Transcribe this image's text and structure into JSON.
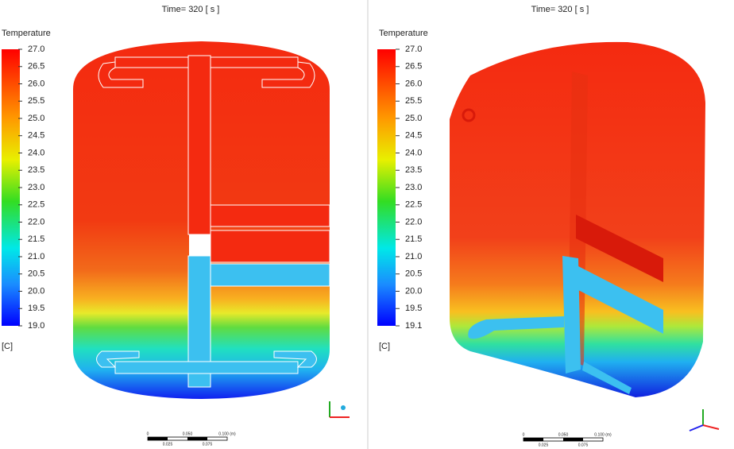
{
  "panels": [
    {
      "title": "Time= 320 [ s ]",
      "legend": {
        "title": "Temperature",
        "labels": [
          "27.0",
          "26.5",
          "26.0",
          "25.5",
          "25.0",
          "24.5",
          "24.0",
          "23.5",
          "23.0",
          "22.5",
          "22.0",
          "21.5",
          "21.0",
          "20.5",
          "20.0",
          "19.5",
          "19.0"
        ],
        "unit": "[C]"
      },
      "scale_bar": {
        "top": [
          "0",
          "0.050",
          "0.100 (m)"
        ],
        "bottom": [
          "0.025",
          "0.075"
        ]
      }
    },
    {
      "title": "Time= 320 [ s ]",
      "legend": {
        "title": "Temperature",
        "labels": [
          "27.0",
          "26.5",
          "26.0",
          "25.5",
          "25.0",
          "24.5",
          "24.0",
          "23.5",
          "23.0",
          "22.5",
          "22.0",
          "21.5",
          "21.0",
          "20.5",
          "20.0",
          "19.5",
          "19.1"
        ],
        "unit": "[C]"
      },
      "scale_bar": {
        "top": [
          "0",
          "0.050",
          "0.100 (m)"
        ],
        "bottom": [
          "0.025",
          "0.075"
        ]
      }
    }
  ]
}
